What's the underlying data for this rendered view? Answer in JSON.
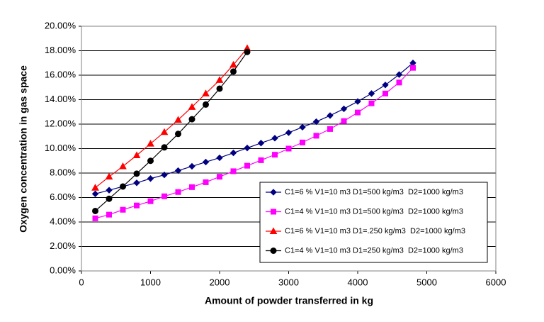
{
  "chart_data": {
    "type": "line",
    "x_label": "Amount of powder transferred in kg",
    "y_label": "Oxygen concentration in gas space",
    "xlim": [
      0,
      6000
    ],
    "xticks": [
      0,
      1000,
      2000,
      3000,
      4000,
      5000,
      6000
    ],
    "ylim": [
      0,
      20
    ],
    "yticks": [
      {
        "value": 0,
        "label": "0.00%"
      },
      {
        "value": 2,
        "label": "2.00%"
      },
      {
        "value": 4,
        "label": "4.00%"
      },
      {
        "value": 6,
        "label": "6.00%"
      },
      {
        "value": 8,
        "label": "8.00%"
      },
      {
        "value": 10,
        "label": "10.00%"
      },
      {
        "value": 12,
        "label": "12.00%"
      },
      {
        "value": 14,
        "label": "14.00%"
      },
      {
        "value": 16,
        "label": "16.00%"
      },
      {
        "value": 18,
        "label": "18.00%"
      },
      {
        "value": 20,
        "label": "20.00%"
      }
    ],
    "grid": true,
    "legend": "lower right",
    "series": [
      {
        "name": "C1=6 % V1=10 m3 D1=500 kg/m3  D2=1000 kg/m3",
        "color": "#000080",
        "marker": "diamond",
        "x": [
          200,
          400,
          600,
          800,
          1000,
          1200,
          1400,
          1600,
          1800,
          2000,
          2200,
          2400,
          2600,
          2800,
          3000,
          3200,
          3400,
          3600,
          3800,
          4000,
          4200,
          4400,
          4600,
          4800
        ],
        "values": [
          6.3,
          6.6,
          6.9,
          7.2,
          7.55,
          7.85,
          8.2,
          8.55,
          8.9,
          9.25,
          9.65,
          10.05,
          10.45,
          10.85,
          11.3,
          11.75,
          12.2,
          12.7,
          13.25,
          13.85,
          14.5,
          15.2,
          16.05,
          17.0
        ]
      },
      {
        "name": "C1=4 % V1=10 m3 D1=500 kg/m3  D2=1000 kg/m3",
        "color": "#ff00ff",
        "marker": "square",
        "x": [
          200,
          400,
          600,
          800,
          1000,
          1200,
          1400,
          1600,
          1800,
          2000,
          2200,
          2400,
          2600,
          2800,
          3000,
          3200,
          3400,
          3600,
          3800,
          4000,
          4200,
          4400,
          4600,
          4800
        ],
        "values": [
          4.3,
          4.6,
          5.0,
          5.35,
          5.7,
          6.1,
          6.45,
          6.85,
          7.25,
          7.7,
          8.15,
          8.6,
          9.05,
          9.5,
          10.0,
          10.5,
          11.05,
          11.6,
          12.25,
          12.95,
          13.7,
          14.5,
          15.4,
          16.6
        ]
      },
      {
        "name": "C1=6 % V1=10 m3 D1=.250 kg/m3  D2=1000 kg/m3",
        "color": "#ff0000",
        "marker": "triangle",
        "x": [
          200,
          400,
          600,
          800,
          1000,
          1200,
          1400,
          1600,
          1800,
          2000,
          2200,
          2400
        ],
        "values": [
          6.8,
          7.7,
          8.55,
          9.45,
          10.4,
          11.35,
          12.35,
          13.4,
          14.5,
          15.6,
          16.85,
          18.2
        ]
      },
      {
        "name": "C1=4 % V1=10 m3 D1=250 kg/m3  D2=1000 kg/m3",
        "color": "#000000",
        "marker": "circle",
        "x": [
          200,
          400,
          600,
          800,
          1000,
          1200,
          1400,
          1600,
          1800,
          2000,
          2200,
          2400
        ],
        "values": [
          4.9,
          5.9,
          6.9,
          7.95,
          9.0,
          10.1,
          11.2,
          12.4,
          13.6,
          14.9,
          16.3,
          17.9
        ]
      }
    ]
  }
}
